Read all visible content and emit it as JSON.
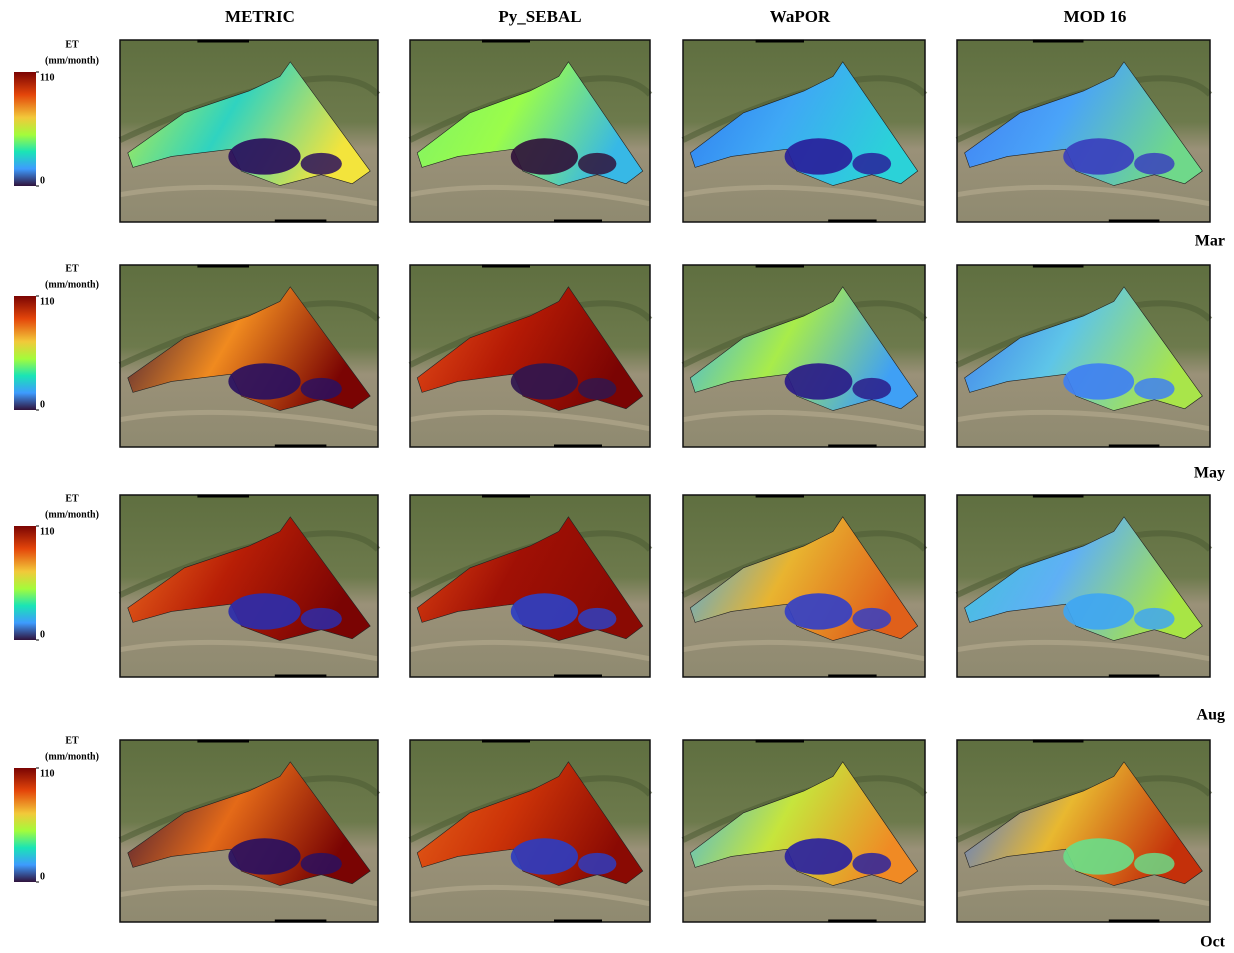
{
  "columns": [
    "METRIC",
    "Py_SEBAL",
    "WaPOR",
    "MOD 16"
  ],
  "rows": [
    "Mar",
    "May",
    "Aug",
    "Oct"
  ],
  "colorbars": [
    {
      "title": "ET",
      "unit": "(mm/month)",
      "max": 110,
      "min": 0
    },
    {
      "title": "ET",
      "unit": "(mm/month)",
      "max": 110,
      "min": 0
    },
    {
      "title": "ET",
      "unit": "(mm/month)",
      "max": 110,
      "min": 0
    },
    {
      "title": "ET",
      "unit": "(mm/month)",
      "max": 110,
      "min": 0
    }
  ]
}
